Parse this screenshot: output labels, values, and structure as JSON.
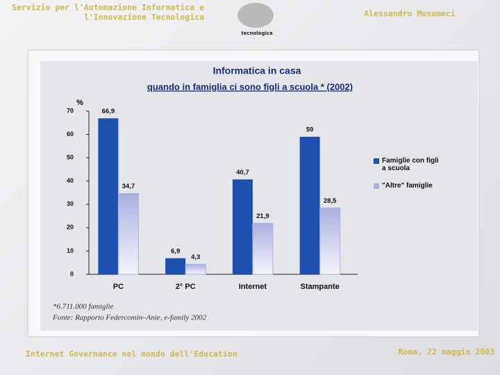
{
  "header": {
    "left_lines": [
      "Servizio per l'Automazione Informatica e",
      "l'Innovazione Tecnologica"
    ],
    "logo": "tecnologica",
    "right": "Alessandro Musumeci"
  },
  "footer": {
    "left": "Internet Governance nel mondo dell'Education",
    "right": "Roma, 22 maggio 2003"
  },
  "chart_data": {
    "type": "bar",
    "title": "Informatica in casa",
    "subtitle": "quando in famiglia ci sono figli a scuola  *  (2002)",
    "y_label": "%",
    "categories": [
      "PC",
      "2° PC",
      "Internet",
      "Stampante"
    ],
    "series": [
      {
        "name": "Famiglie con figli a scuola",
        "color": "#1d4fae",
        "values": [
          66.9,
          6.9,
          40.7,
          59
        ],
        "value_labels": [
          "66,9",
          "6,9",
          "40,7",
          "59"
        ]
      },
      {
        "name": "\"Altre\" famiglie",
        "color": "#aab0e0",
        "values": [
          34.7,
          4.3,
          21.9,
          28.5
        ],
        "value_labels": [
          "34,7",
          "4,3",
          "21,9",
          "28,5"
        ]
      }
    ],
    "ylim": [
      0,
      70
    ],
    "yticks": [
      0,
      10,
      20,
      30,
      40,
      50,
      60,
      70
    ],
    "legend": "right",
    "notes": [
      "*6.711.000 famiglie",
      "Fonte: Rapporto Federcomin–Anie, e-family 2002"
    ]
  }
}
